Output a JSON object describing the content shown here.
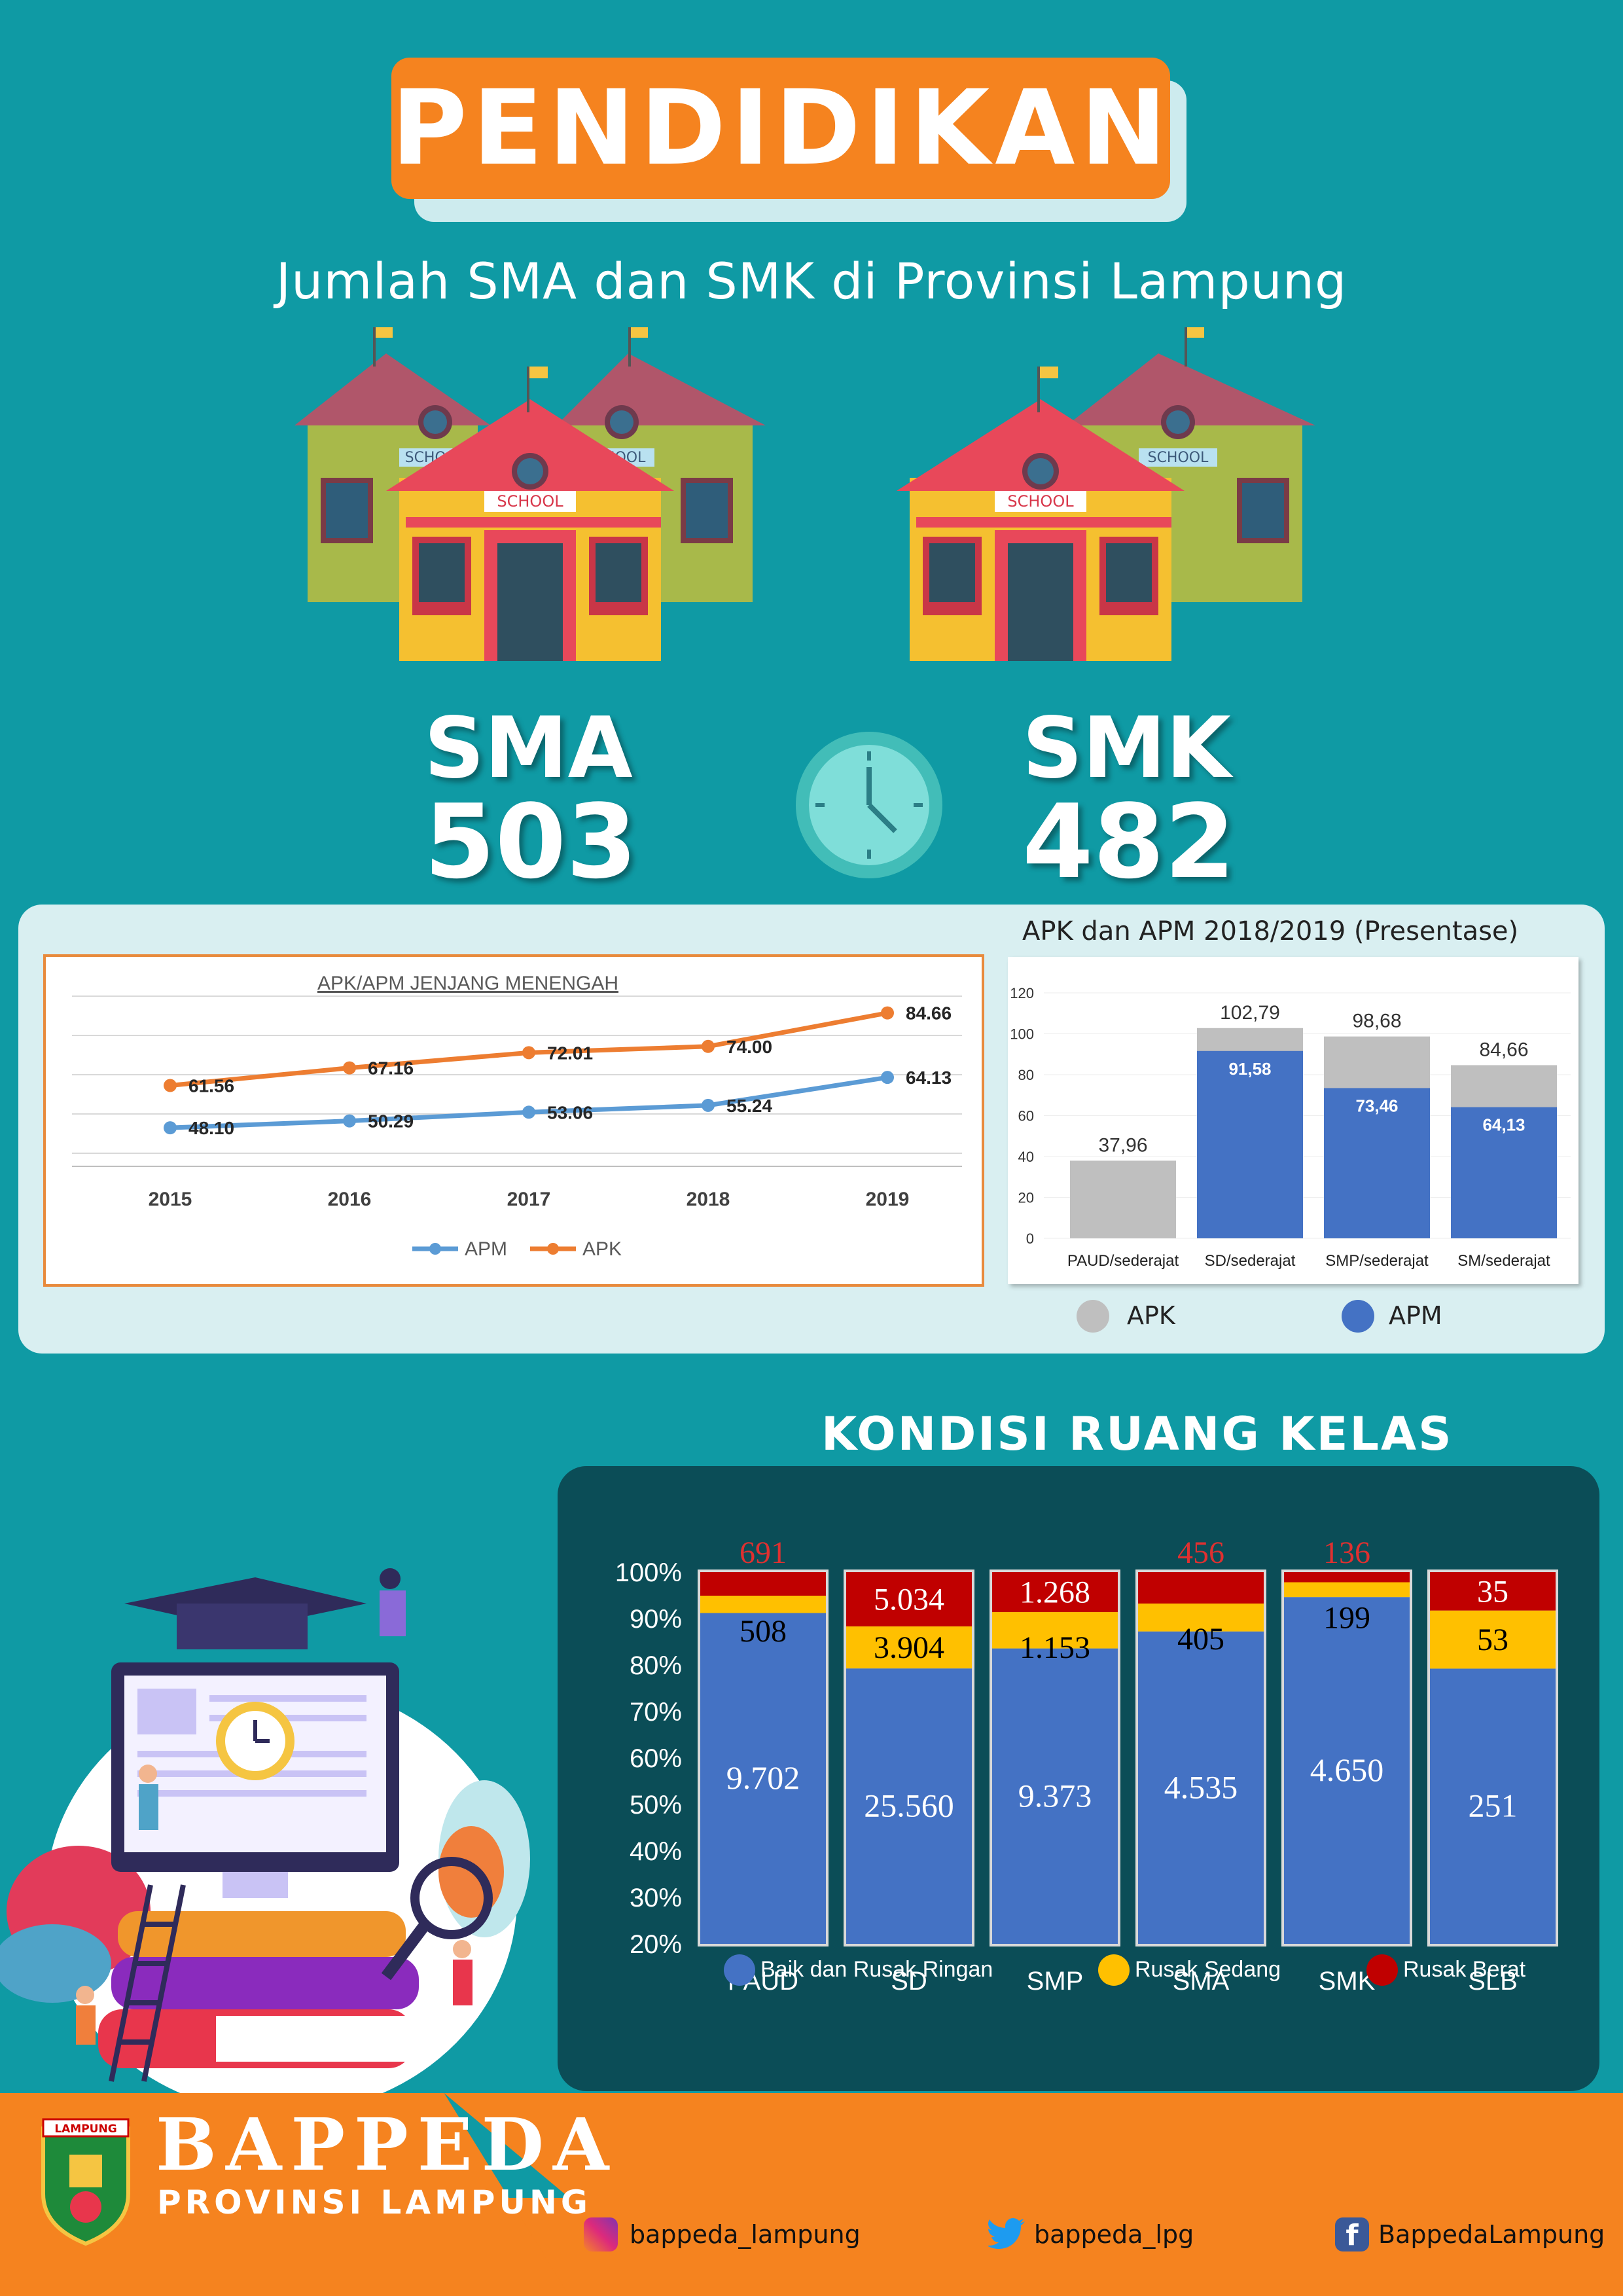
{
  "header": {
    "title": "PENDIDIKAN",
    "subtitle": "Jumlah SMA dan SMK di Provinsi Lampung"
  },
  "schools": {
    "label": "SCHOOL"
  },
  "stats": [
    {
      "name": "SMA",
      "value": "503"
    },
    {
      "name": "SMK",
      "value": "482"
    }
  ],
  "chart_data": [
    {
      "type": "line",
      "title": "APK/APM JENJANG MENENGAH",
      "x": [
        "2015",
        "2016",
        "2017",
        "2018",
        "2019"
      ],
      "series": [
        {
          "name": "APM",
          "values": [
            48.1,
            50.29,
            53.06,
            55.24,
            64.13
          ],
          "labels": [
            "48.10",
            "50.29",
            "53.06",
            "55.24",
            "64.13"
          ],
          "color": "#5b9bd5"
        },
        {
          "name": "APK",
          "values": [
            61.56,
            67.16,
            72.01,
            74.0,
            84.66
          ],
          "labels": [
            "61.56",
            "67.16",
            "72.01",
            "74.00",
            "84.66"
          ],
          "color": "#ed7d31"
        }
      ],
      "legend": "bottom"
    },
    {
      "type": "bar",
      "title": "APK dan APM 2018/2019 (Presentase)",
      "categories": [
        "PAUD/sederajat",
        "SD/sederajat",
        "SMP/sederajat",
        "SM/sederajat"
      ],
      "ylim": [
        0,
        120
      ],
      "yticks": [
        "0",
        "20",
        "40",
        "60",
        "80",
        "100",
        "120"
      ],
      "series": [
        {
          "name": "APK",
          "values": [
            37.96,
            102.79,
            98.68,
            84.66
          ],
          "labels": [
            "37,96",
            "102,79",
            "98,68",
            "84,66"
          ],
          "color": "#bfbfbf"
        },
        {
          "name": "APM",
          "values": [
            null,
            91.58,
            73.46,
            64.13
          ],
          "labels": [
            "",
            "91,58",
            "73,46",
            "64,13"
          ],
          "color": "#4472c4"
        }
      ],
      "legend": "bottom"
    },
    {
      "type": "bar",
      "stacked": "percent",
      "title": "KONDISI RUANG KELAS",
      "categories": [
        "PAUD",
        "SD",
        "SMP",
        "SMA",
        "SMK",
        "SLB"
      ],
      "yticks": [
        "20%",
        "30%",
        "40%",
        "50%",
        "60%",
        "70%",
        "80%",
        "90%",
        "100%"
      ],
      "series": [
        {
          "name": "Baik dan Rusak Ringan",
          "values": [
            9702,
            25560,
            9373,
            4535,
            4650,
            251
          ],
          "labels": [
            "9.702",
            "25.560",
            "9.373",
            "4.535",
            "4.650",
            "251"
          ],
          "color": "#4472c4"
        },
        {
          "name": "Rusak Sedang",
          "values": [
            508,
            3904,
            1153,
            405,
            199,
            53
          ],
          "labels": [
            "508",
            "3.904",
            "1.153",
            "405",
            "199",
            "53"
          ],
          "color": "#ffc000"
        },
        {
          "name": "Rusak Berat",
          "values": [
            691,
            5034,
            1268,
            456,
            136,
            35
          ],
          "labels": [
            "691",
            "5.034",
            "1.268",
            "456",
            "136",
            "35"
          ],
          "color": "#c00000"
        }
      ],
      "legend": "bottom"
    }
  ],
  "footer": {
    "brand": "BAPPEDA",
    "brand_sub": "PROVINSI LAMPUNG",
    "logo_text": "LAMPUNG",
    "instagram": "bappeda_lampung",
    "twitter": "bappeda_lpg",
    "facebook": "BappedaLampung"
  }
}
